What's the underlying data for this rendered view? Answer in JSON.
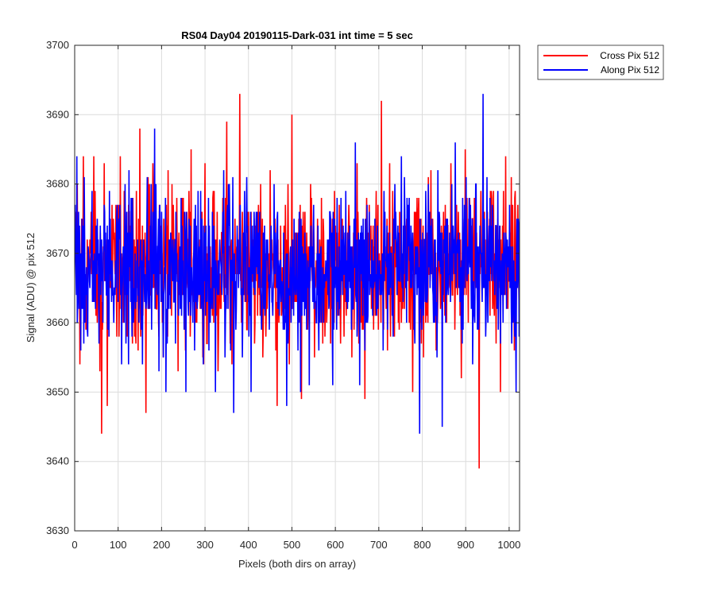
{
  "chart_data": {
    "type": "line",
    "title": "RS04 Day04 20190115-Dark-031 int time = 5 sec",
    "xlabel": "Pixels (both dirs on array)",
    "ylabel": "Signal (ADU) @ pix 512",
    "xlim": [
      0,
      1024
    ],
    "ylim": [
      3630,
      3700
    ],
    "x_ticks": [
      0,
      100,
      200,
      300,
      400,
      500,
      600,
      700,
      800,
      900,
      1000
    ],
    "y_ticks": [
      3630,
      3640,
      3650,
      3660,
      3670,
      3680,
      3690,
      3700
    ],
    "grid": true,
    "legend_position": "outside top-right",
    "x": {
      "start": 1,
      "end": 1024,
      "step": 1
    },
    "series": [
      {
        "name": "Cross Pix 512",
        "color": "#ff0000",
        "mean": 3668,
        "min": 3639,
        "max": 3693,
        "values_by_x": [
          [
            6,
            3680
          ],
          [
            10,
            3663
          ],
          [
            12,
            3654
          ],
          [
            20,
            3684
          ],
          [
            28,
            3663
          ],
          [
            35,
            3672
          ],
          [
            44,
            3684
          ],
          [
            52,
            3660
          ],
          [
            58,
            3653
          ],
          [
            62,
            3644
          ],
          [
            68,
            3683
          ],
          [
            75,
            3648
          ],
          [
            86,
            3677
          ],
          [
            96,
            3665
          ],
          [
            105,
            3684
          ],
          [
            112,
            3660
          ],
          [
            120,
            3676
          ],
          [
            133,
            3657
          ],
          [
            142,
            3679
          ],
          [
            150,
            3688
          ],
          [
            160,
            3672
          ],
          [
            164,
            3647
          ],
          [
            172,
            3680
          ],
          [
            180,
            3683
          ],
          [
            188,
            3662
          ],
          [
            198,
            3674
          ],
          [
            204,
            3655
          ],
          [
            215,
            3682
          ],
          [
            226,
            3668
          ],
          [
            238,
            3653
          ],
          [
            250,
            3678
          ],
          [
            262,
            3672
          ],
          [
            268,
            3685
          ],
          [
            278,
            3660
          ],
          [
            290,
            3665
          ],
          [
            300,
            3683
          ],
          [
            305,
            3657
          ],
          [
            318,
            3678
          ],
          [
            330,
            3653
          ],
          [
            340,
            3670
          ],
          [
            350,
            3689
          ],
          [
            362,
            3654
          ],
          [
            372,
            3670
          ],
          [
            380,
            3693
          ],
          [
            390,
            3664
          ],
          [
            400,
            3676
          ],
          [
            414,
            3657
          ],
          [
            420,
            3676
          ],
          [
            428,
            3680
          ],
          [
            440,
            3658
          ],
          [
            450,
            3682
          ],
          [
            466,
            3648
          ],
          [
            478,
            3668
          ],
          [
            490,
            3670
          ],
          [
            494,
            3654
          ],
          [
            500,
            3690
          ],
          [
            510,
            3671
          ],
          [
            518,
            3660
          ],
          [
            522,
            3649
          ],
          [
            532,
            3670
          ],
          [
            545,
            3678
          ],
          [
            558,
            3668
          ],
          [
            568,
            3678
          ],
          [
            580,
            3660
          ],
          [
            590,
            3672
          ],
          [
            598,
            3679
          ],
          [
            612,
            3657
          ],
          [
            622,
            3668
          ],
          [
            638,
            3655
          ],
          [
            650,
            3683
          ],
          [
            660,
            3660
          ],
          [
            668,
            3649
          ],
          [
            676,
            3672
          ],
          [
            688,
            3659
          ],
          [
            700,
            3668
          ],
          [
            706,
            3692
          ],
          [
            716,
            3665
          ],
          [
            725,
            3683
          ],
          [
            736,
            3658
          ],
          [
            748,
            3676
          ],
          [
            760,
            3672
          ],
          [
            772,
            3662
          ],
          [
            778,
            3650
          ],
          [
            788,
            3678
          ],
          [
            800,
            3671
          ],
          [
            810,
            3661
          ],
          [
            820,
            3682
          ],
          [
            832,
            3656
          ],
          [
            844,
            3674
          ],
          [
            856,
            3660
          ],
          [
            866,
            3683
          ],
          [
            876,
            3665
          ],
          [
            890,
            3652
          ],
          [
            899,
            3685
          ],
          [
            911,
            3668
          ],
          [
            920,
            3678
          ],
          [
            931,
            3639
          ],
          [
            936,
            3668
          ],
          [
            948,
            3665
          ],
          [
            960,
            3678
          ],
          [
            970,
            3657
          ],
          [
            980,
            3650
          ],
          [
            992,
            3684
          ],
          [
            1002,
            3673
          ],
          [
            1012,
            3656
          ],
          [
            1020,
            3677
          ],
          [
            1024,
            3660
          ]
        ]
      },
      {
        "name": "Along Pix 512",
        "color": "#0000ff",
        "mean": 3668,
        "min": 3644,
        "max": 3693,
        "values_by_x": [
          [
            5,
            3684
          ],
          [
            9,
            3676
          ],
          [
            14,
            3656
          ],
          [
            22,
            3681
          ],
          [
            30,
            3658
          ],
          [
            40,
            3679
          ],
          [
            48,
            3662
          ],
          [
            56,
            3657
          ],
          [
            66,
            3670
          ],
          [
            76,
            3659
          ],
          [
            82,
            3675
          ],
          [
            90,
            3660
          ],
          [
            100,
            3663
          ],
          [
            108,
            3654
          ],
          [
            116,
            3680
          ],
          [
            124,
            3654
          ],
          [
            130,
            3678
          ],
          [
            140,
            3662
          ],
          [
            148,
            3660
          ],
          [
            156,
            3654
          ],
          [
            166,
            3673
          ],
          [
            176,
            3680
          ],
          [
            184,
            3688
          ],
          [
            194,
            3653
          ],
          [
            200,
            3676
          ],
          [
            210,
            3650
          ],
          [
            222,
            3672
          ],
          [
            232,
            3657
          ],
          [
            244,
            3665
          ],
          [
            256,
            3650
          ],
          [
            266,
            3674
          ],
          [
            276,
            3656
          ],
          [
            284,
            3679
          ],
          [
            296,
            3654
          ],
          [
            302,
            3674
          ],
          [
            312,
            3660
          ],
          [
            324,
            3650
          ],
          [
            334,
            3672
          ],
          [
            344,
            3665
          ],
          [
            354,
            3680
          ],
          [
            366,
            3647
          ],
          [
            376,
            3672
          ],
          [
            386,
            3655
          ],
          [
            396,
            3681
          ],
          [
            406,
            3650
          ],
          [
            418,
            3676
          ],
          [
            430,
            3659
          ],
          [
            442,
            3671
          ],
          [
            456,
            3661
          ],
          [
            470,
            3668
          ],
          [
            480,
            3659
          ],
          [
            488,
            3648
          ],
          [
            498,
            3660
          ],
          [
            508,
            3664
          ],
          [
            520,
            3650
          ],
          [
            530,
            3673
          ],
          [
            540,
            3651
          ],
          [
            550,
            3677
          ],
          [
            562,
            3656
          ],
          [
            570,
            3664
          ],
          [
            582,
            3672
          ],
          [
            594,
            3651
          ],
          [
            604,
            3678
          ],
          [
            616,
            3672
          ],
          [
            630,
            3663
          ],
          [
            646,
            3686
          ],
          [
            656,
            3651
          ],
          [
            664,
            3675
          ],
          [
            674,
            3660
          ],
          [
            684,
            3672
          ],
          [
            694,
            3662
          ],
          [
            704,
            3666
          ],
          [
            714,
            3676
          ],
          [
            724,
            3664
          ],
          [
            734,
            3675
          ],
          [
            742,
            3664
          ],
          [
            752,
            3684
          ],
          [
            764,
            3660
          ],
          [
            774,
            3674
          ],
          [
            784,
            3671
          ],
          [
            794,
            3644
          ],
          [
            804,
            3668
          ],
          [
            814,
            3680
          ],
          [
            826,
            3660
          ],
          [
            836,
            3682
          ],
          [
            846,
            3645
          ],
          [
            856,
            3664
          ],
          [
            868,
            3680
          ],
          [
            876,
            3686
          ],
          [
            886,
            3672
          ],
          [
            896,
            3671
          ],
          [
            904,
            3668
          ],
          [
            916,
            3654
          ],
          [
            924,
            3680
          ],
          [
            940,
            3693
          ],
          [
            952,
            3665
          ],
          [
            962,
            3676
          ],
          [
            972,
            3662
          ],
          [
            984,
            3670
          ],
          [
            996,
            3672
          ],
          [
            1006,
            3657
          ],
          [
            1016,
            3650
          ],
          [
            1024,
            3662
          ]
        ]
      }
    ]
  }
}
